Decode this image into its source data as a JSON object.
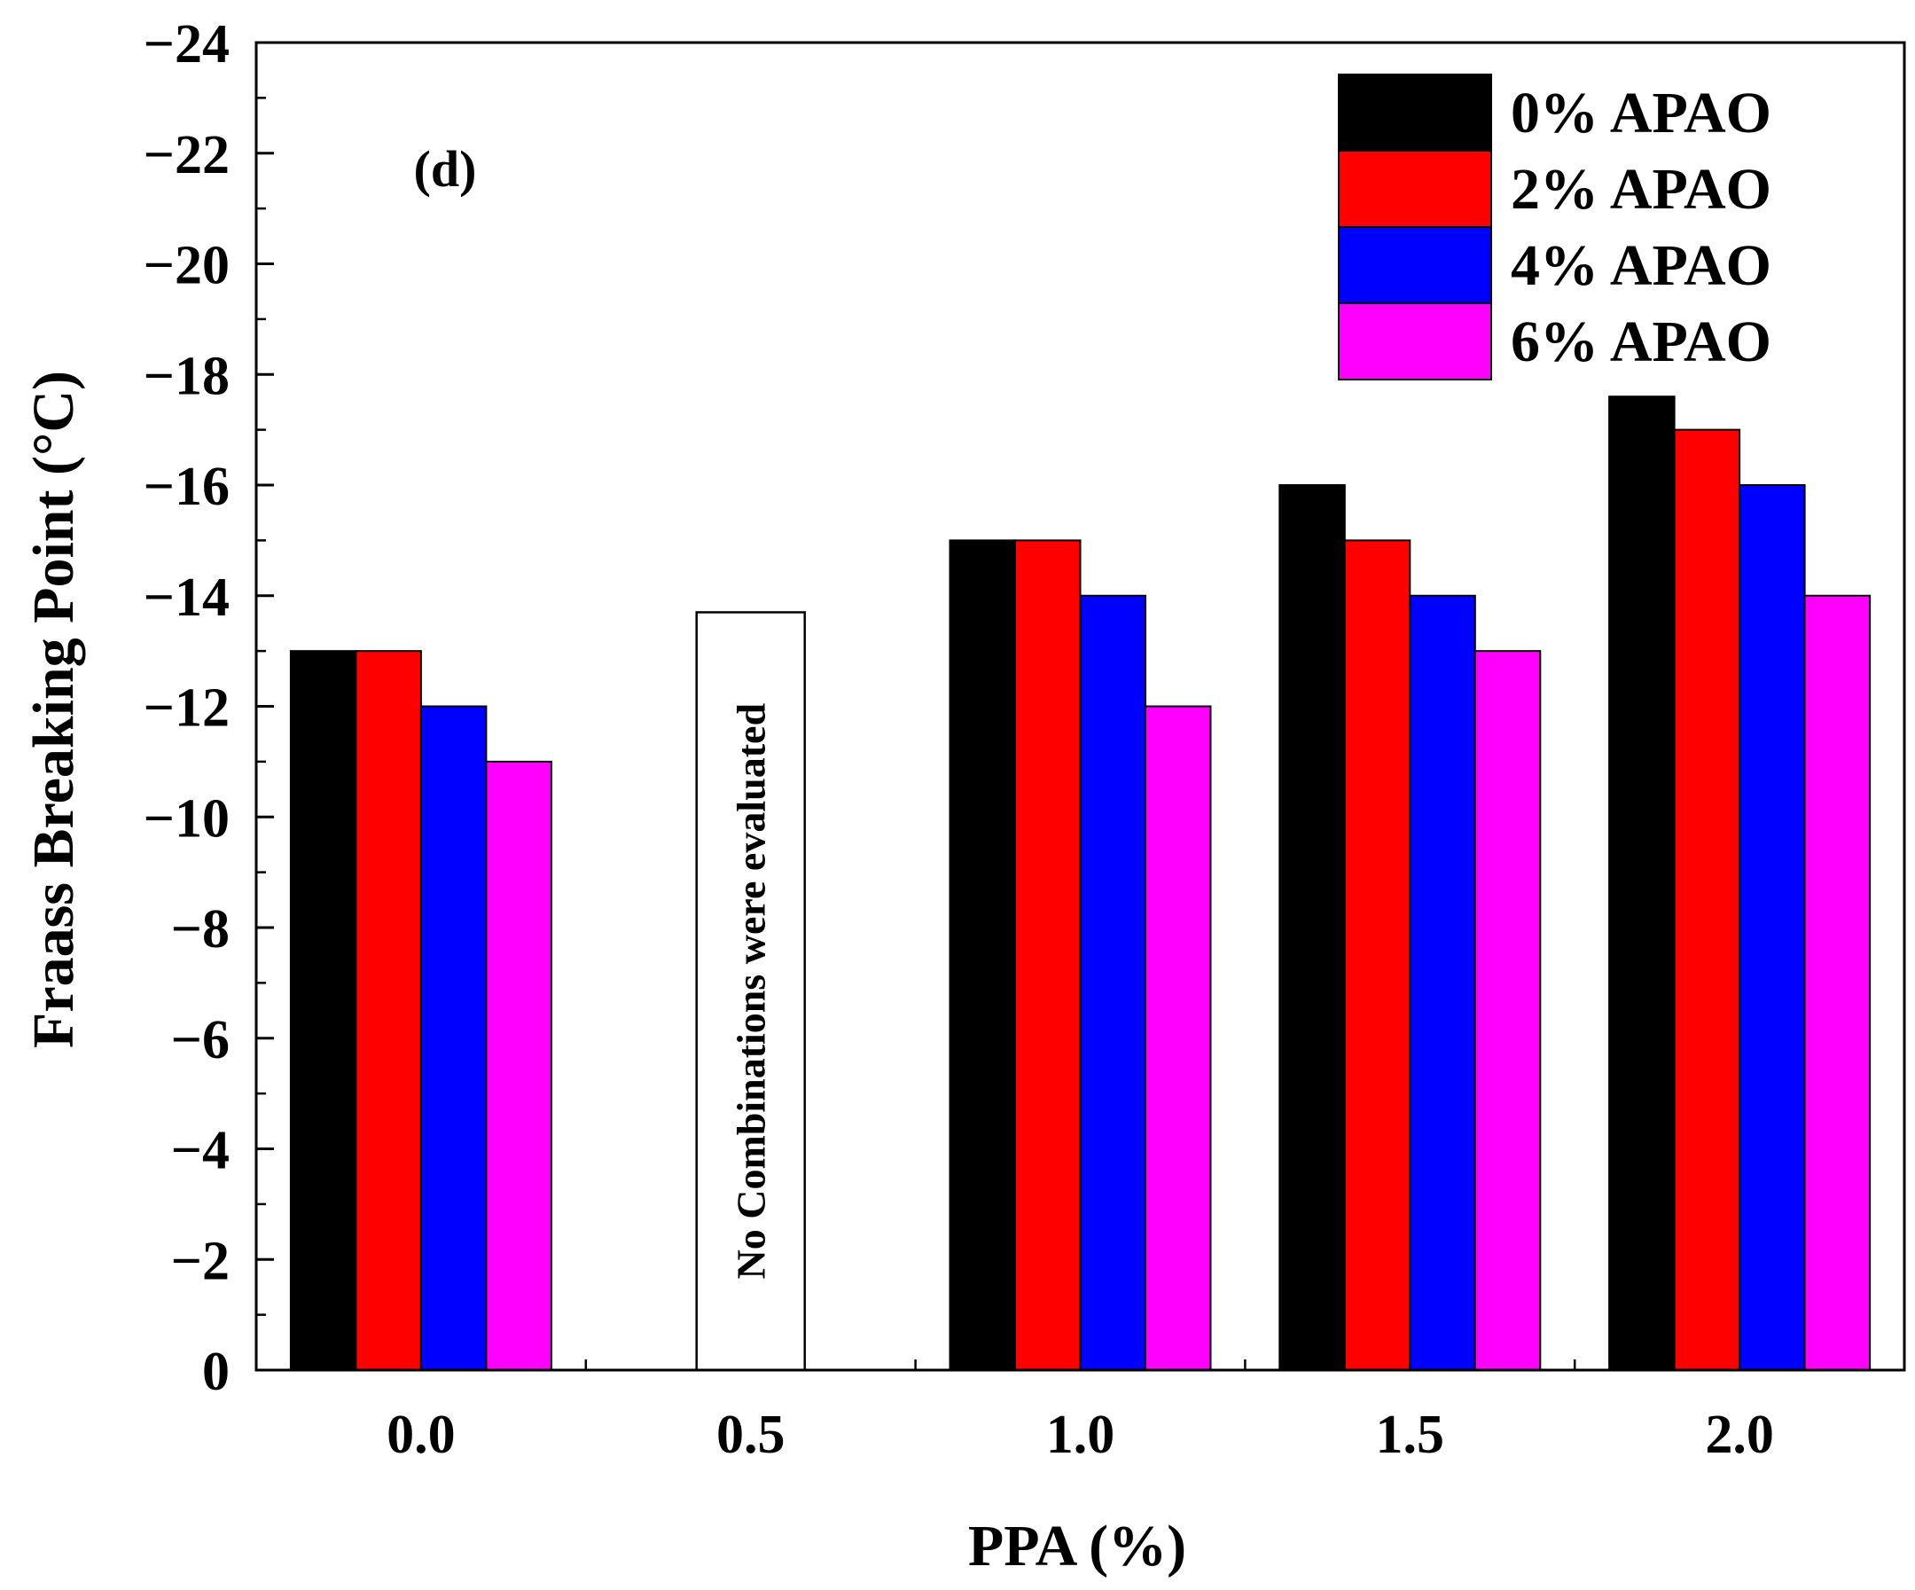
{
  "chart_data": {
    "type": "bar",
    "panel_label": "(d)",
    "xlabel": "PPA (%)",
    "ylabel": "Fraass Breaking Point (°C)",
    "categories": [
      "0.0",
      "0.5",
      "1.0",
      "1.5",
      "2.0"
    ],
    "ylim": [
      0,
      -24
    ],
    "y_ticks": [
      {
        "value": 0,
        "label": "0"
      },
      {
        "value": -2,
        "label": "−2"
      },
      {
        "value": -4,
        "label": "−4"
      },
      {
        "value": -6,
        "label": "−6"
      },
      {
        "value": -8,
        "label": "−8"
      },
      {
        "value": -10,
        "label": "−10"
      },
      {
        "value": -12,
        "label": "−12"
      },
      {
        "value": -14,
        "label": "−14"
      },
      {
        "value": -16,
        "label": "−16"
      },
      {
        "value": -18,
        "label": "−18"
      },
      {
        "value": -20,
        "label": "−20"
      },
      {
        "value": -22,
        "label": "−22"
      },
      {
        "value": -24,
        "label": "−24"
      }
    ],
    "series": [
      {
        "name": "0% APAO",
        "color": "#000000",
        "values": [
          -13,
          null,
          -15,
          -16,
          -17.6
        ]
      },
      {
        "name": "2% APAO",
        "color": "#ff0000",
        "values": [
          -13,
          null,
          -15,
          -15,
          -17
        ]
      },
      {
        "name": "4% APAO",
        "color": "#0000ff",
        "values": [
          -12,
          null,
          -14,
          -14,
          -16
        ]
      },
      {
        "name": "6% APAO",
        "color": "#ff00ff",
        "values": [
          -11,
          null,
          -12,
          -13,
          -14
        ]
      }
    ],
    "annotation": {
      "category": "0.5",
      "text": "No Combinations were evaluated",
      "box_top_value": -13.7
    },
    "legend_position": "top-right",
    "grid": false
  }
}
